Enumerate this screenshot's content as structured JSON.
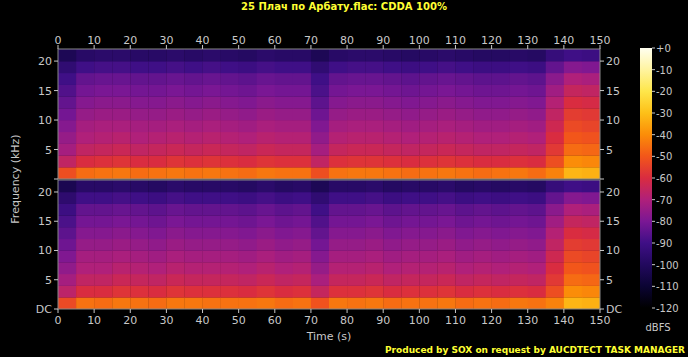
{
  "chart_data": {
    "type": "heatmap",
    "title": "25 Плач по Арбату.flac: CDDA 100%",
    "x_label": "Time (s)",
    "y_label": "Frequency (kHz)",
    "color_label": "dBFS",
    "footer": "Produced by SOX on request by AUCDTECT TASK MANAGER",
    "xlim": [
      0,
      150
    ],
    "xticks": [
      0,
      10,
      20,
      30,
      40,
      50,
      60,
      70,
      80,
      90,
      100,
      110,
      120,
      130,
      140,
      150
    ],
    "ylim": [
      0,
      22.05
    ],
    "yticks": [
      {
        "value": 0,
        "label": "DC"
      },
      5,
      10,
      15,
      20
    ],
    "time_bins": [
      0,
      5,
      10,
      15,
      20,
      25,
      30,
      35,
      40,
      45,
      50,
      55,
      60,
      65,
      70,
      75,
      80,
      85,
      90,
      95,
      100,
      105,
      110,
      115,
      120,
      125,
      130,
      135,
      140,
      145,
      150
    ],
    "frequency_bins": [
      0,
      2,
      4,
      6,
      8,
      10,
      12,
      14,
      16,
      18,
      20,
      22.05
    ],
    "channels": [
      {
        "cells": [
          [
            -52,
            -46,
            -45,
            -44,
            -46,
            -45,
            -44,
            -45,
            -44,
            -45,
            -46,
            -44,
            -45,
            -45,
            -52,
            -45,
            -44,
            -44,
            -45,
            -46,
            -45,
            -44,
            -45,
            -46,
            -45,
            -44,
            -46,
            -42,
            -32,
            -33
          ],
          [
            -66,
            -60,
            -59,
            -58,
            -60,
            -60,
            -58,
            -59,
            -58,
            -59,
            -60,
            -58,
            -59,
            -59,
            -66,
            -59,
            -58,
            -58,
            -59,
            -60,
            -59,
            -58,
            -59,
            -60,
            -60,
            -59,
            -60,
            -52,
            -40,
            -41
          ],
          [
            -72,
            -66,
            -65,
            -64,
            -66,
            -65,
            -64,
            -65,
            -64,
            -65,
            -66,
            -64,
            -65,
            -65,
            -72,
            -65,
            -64,
            -64,
            -65,
            -66,
            -65,
            -64,
            -65,
            -66,
            -66,
            -65,
            -66,
            -57,
            -46,
            -47
          ],
          [
            -75,
            -70,
            -69,
            -68,
            -70,
            -69,
            -68,
            -69,
            -68,
            -69,
            -70,
            -68,
            -69,
            -69,
            -76,
            -69,
            -68,
            -68,
            -69,
            -70,
            -69,
            -68,
            -69,
            -70,
            -70,
            -69,
            -70,
            -60,
            -50,
            -51
          ],
          [
            -78,
            -72,
            -71,
            -71,
            -72,
            -72,
            -71,
            -72,
            -71,
            -72,
            -73,
            -71,
            -72,
            -72,
            -79,
            -72,
            -71,
            -71,
            -72,
            -73,
            -72,
            -71,
            -72,
            -73,
            -73,
            -72,
            -73,
            -63,
            -53,
            -54
          ],
          [
            -81,
            -75,
            -74,
            -74,
            -75,
            -75,
            -74,
            -75,
            -74,
            -75,
            -76,
            -74,
            -75,
            -75,
            -82,
            -75,
            -74,
            -74,
            -75,
            -76,
            -75,
            -74,
            -75,
            -76,
            -76,
            -75,
            -76,
            -66,
            -56,
            -57
          ],
          [
            -84,
            -78,
            -77,
            -77,
            -78,
            -78,
            -77,
            -78,
            -77,
            -78,
            -79,
            -77,
            -78,
            -78,
            -85,
            -78,
            -77,
            -77,
            -78,
            -79,
            -78,
            -77,
            -78,
            -79,
            -79,
            -78,
            -79,
            -69,
            -60,
            -61
          ],
          [
            -87,
            -81,
            -80,
            -80,
            -81,
            -81,
            -80,
            -81,
            -80,
            -81,
            -82,
            -80,
            -81,
            -81,
            -88,
            -81,
            -80,
            -80,
            -81,
            -82,
            -81,
            -80,
            -81,
            -82,
            -82,
            -81,
            -82,
            -73,
            -65,
            -66
          ],
          [
            -90,
            -84,
            -83,
            -83,
            -84,
            -84,
            -83,
            -84,
            -83,
            -84,
            -85,
            -83,
            -84,
            -84,
            -90,
            -84,
            -83,
            -83,
            -84,
            -85,
            -84,
            -83,
            -84,
            -85,
            -85,
            -84,
            -85,
            -77,
            -70,
            -71
          ],
          [
            -95,
            -90,
            -89,
            -89,
            -90,
            -90,
            -89,
            -90,
            -89,
            -90,
            -91,
            -89,
            -90,
            -90,
            -95,
            -90,
            -89,
            -89,
            -90,
            -91,
            -90,
            -89,
            -90,
            -91,
            -91,
            -90,
            -91,
            -84,
            -78,
            -79
          ],
          [
            -102,
            -98,
            -97,
            -97,
            -98,
            -98,
            -97,
            -98,
            -97,
            -98,
            -99,
            -97,
            -98,
            -98,
            -102,
            -98,
            -97,
            -97,
            -98,
            -99,
            -98,
            -97,
            -98,
            -99,
            -99,
            -98,
            -99,
            -93,
            -90,
            -91
          ]
        ]
      },
      {
        "cells": [
          [
            -53,
            -45,
            -46,
            -44,
            -45,
            -46,
            -44,
            -44,
            -45,
            -45,
            -45,
            -44,
            -46,
            -45,
            -51,
            -44,
            -45,
            -44,
            -46,
            -45,
            -45,
            -44,
            -46,
            -45,
            -46,
            -44,
            -45,
            -42,
            -32,
            -33
          ],
          [
            -67,
            -60,
            -60,
            -58,
            -59,
            -60,
            -58,
            -59,
            -59,
            -59,
            -60,
            -58,
            -60,
            -59,
            -65,
            -59,
            -59,
            -58,
            -60,
            -59,
            -59,
            -58,
            -60,
            -59,
            -60,
            -59,
            -60,
            -52,
            -40,
            -41
          ],
          [
            -72,
            -66,
            -66,
            -64,
            -65,
            -66,
            -64,
            -65,
            -65,
            -65,
            -66,
            -64,
            -66,
            -65,
            -71,
            -65,
            -65,
            -64,
            -66,
            -65,
            -65,
            -64,
            -66,
            -65,
            -66,
            -65,
            -66,
            -57,
            -46,
            -47
          ],
          [
            -76,
            -70,
            -70,
            -68,
            -69,
            -70,
            -68,
            -69,
            -69,
            -69,
            -70,
            -68,
            -70,
            -69,
            -75,
            -69,
            -69,
            -68,
            -70,
            -69,
            -69,
            -68,
            -70,
            -69,
            -70,
            -69,
            -70,
            -60,
            -50,
            -51
          ],
          [
            -79,
            -72,
            -72,
            -71,
            -72,
            -73,
            -71,
            -72,
            -72,
            -72,
            -73,
            -71,
            -73,
            -72,
            -78,
            -72,
            -72,
            -71,
            -73,
            -72,
            -72,
            -71,
            -73,
            -72,
            -73,
            -72,
            -73,
            -63,
            -53,
            -54
          ],
          [
            -82,
            -75,
            -75,
            -74,
            -75,
            -76,
            -74,
            -75,
            -75,
            -75,
            -76,
            -74,
            -76,
            -75,
            -81,
            -75,
            -75,
            -74,
            -76,
            -75,
            -75,
            -74,
            -76,
            -75,
            -76,
            -75,
            -76,
            -66,
            -56,
            -57
          ],
          [
            -85,
            -78,
            -78,
            -77,
            -78,
            -79,
            -77,
            -78,
            -78,
            -78,
            -79,
            -77,
            -79,
            -78,
            -84,
            -78,
            -78,
            -77,
            -79,
            -78,
            -78,
            -77,
            -79,
            -78,
            -79,
            -78,
            -79,
            -69,
            -60,
            -61
          ],
          [
            -88,
            -81,
            -81,
            -80,
            -81,
            -82,
            -80,
            -81,
            -81,
            -81,
            -82,
            -80,
            -82,
            -81,
            -87,
            -81,
            -81,
            -80,
            -82,
            -81,
            -81,
            -80,
            -82,
            -81,
            -82,
            -81,
            -82,
            -73,
            -65,
            -66
          ],
          [
            -91,
            -84,
            -84,
            -83,
            -84,
            -85,
            -83,
            -84,
            -84,
            -84,
            -85,
            -83,
            -85,
            -84,
            -90,
            -84,
            -84,
            -83,
            -85,
            -84,
            -84,
            -83,
            -85,
            -84,
            -85,
            -84,
            -85,
            -77,
            -70,
            -71
          ],
          [
            -96,
            -90,
            -90,
            -89,
            -90,
            -91,
            -89,
            -90,
            -90,
            -90,
            -91,
            -89,
            -91,
            -90,
            -95,
            -90,
            -90,
            -89,
            -91,
            -90,
            -90,
            -89,
            -91,
            -90,
            -91,
            -90,
            -91,
            -84,
            -78,
            -79
          ],
          [
            -103,
            -98,
            -98,
            -97,
            -98,
            -99,
            -97,
            -98,
            -98,
            -98,
            -99,
            -97,
            -99,
            -98,
            -102,
            -98,
            -98,
            -97,
            -99,
            -98,
            -98,
            -97,
            -99,
            -98,
            -99,
            -98,
            -99,
            -93,
            -90,
            -91
          ]
        ]
      }
    ],
    "color_range": [
      -120,
      0
    ],
    "color_ticks": [
      {
        "value": 0,
        "label": "+0"
      },
      -10,
      -20,
      -30,
      -40,
      -50,
      -60,
      -70,
      -80,
      -90,
      -100,
      -110,
      -120
    ]
  }
}
